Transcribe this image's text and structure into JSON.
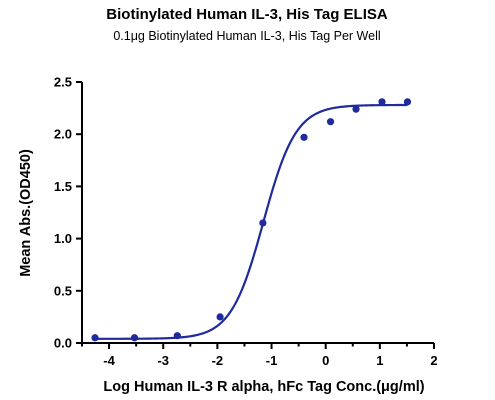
{
  "chart_data": {
    "type": "scatter",
    "title": "Biotinylated Human IL-3, His Tag ELISA",
    "subtitle": "0.1μg Biotinylated Human IL-3, His Tag Per Well",
    "xlabel": "Log Human IL-3 R alpha, hFc Tag Conc.(μg/ml)",
    "ylabel": "Mean Abs.(OD450)",
    "xlim": [
      -4.5,
      2
    ],
    "ylim": [
      0,
      2.5
    ],
    "xticks": [
      "-4",
      "-3",
      "-2",
      "-1",
      "0",
      "1",
      "2"
    ],
    "yticks": [
      "0.0",
      "0.5",
      "1.0",
      "1.5",
      "2.0",
      "2.5"
    ],
    "grid": false,
    "series": [
      {
        "type": "scatter",
        "color": "#1f2a9c",
        "x": [
          -4.26,
          -3.53,
          -2.74,
          -1.95,
          -1.16,
          -0.4,
          0.09,
          0.56,
          1.04,
          1.51
        ],
        "y": [
          0.05,
          0.05,
          0.07,
          0.25,
          1.15,
          1.97,
          2.12,
          2.24,
          2.31,
          2.31
        ]
      },
      {
        "type": "line",
        "color": "#1f2a9c",
        "fit": "four-parameter logistic",
        "bottom": 0.04,
        "top": 2.28,
        "logEC50": -1.15,
        "hill": 1.45,
        "x_range": [
          -4.26,
          1.51
        ]
      }
    ]
  }
}
